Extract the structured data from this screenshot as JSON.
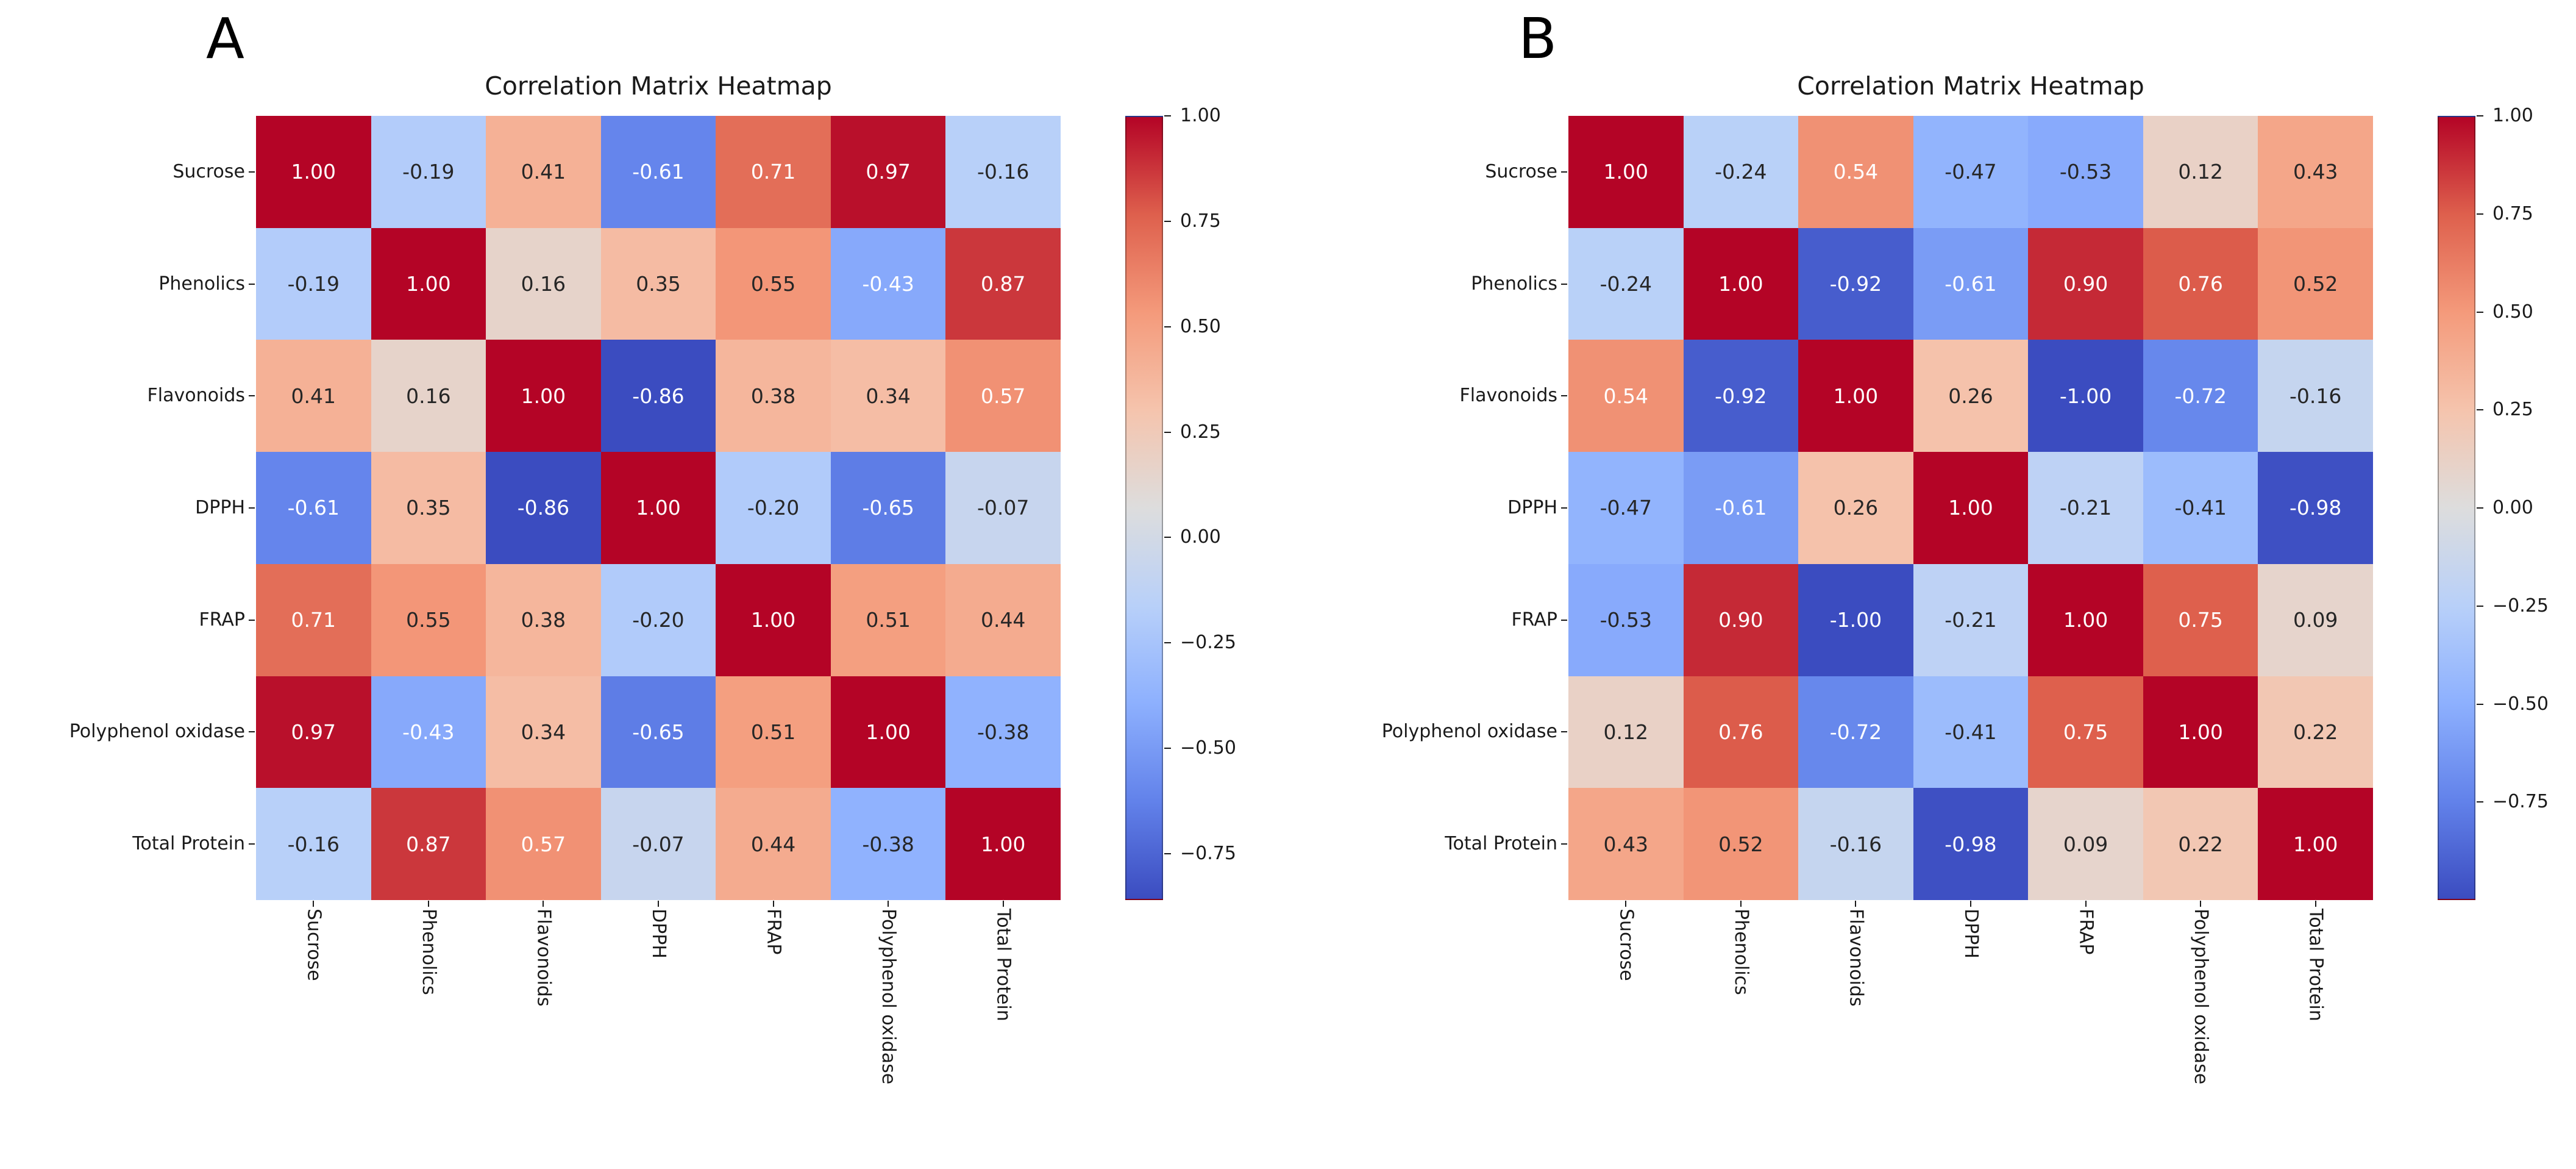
{
  "figure": {
    "background": "#FFFFFF",
    "colormap": {
      "name": "coolwarm",
      "stops": [
        {
          "t": 0.0,
          "color": "#3B4CC0"
        },
        {
          "t": 0.125,
          "color": "#6282EA"
        },
        {
          "t": 0.25,
          "color": "#8DB0FE"
        },
        {
          "t": 0.375,
          "color": "#B8D0F9"
        },
        {
          "t": 0.5,
          "color": "#DDDDDD"
        },
        {
          "t": 0.625,
          "color": "#F5C4AD"
        },
        {
          "t": 0.75,
          "color": "#F49A7B"
        },
        {
          "t": 0.875,
          "color": "#DE604D"
        },
        {
          "t": 1.0,
          "color": "#B40426"
        }
      ]
    },
    "annotation_colors": {
      "light": "#FFFFFF",
      "dark": "#262626"
    }
  },
  "chart_data": [
    {
      "type": "heatmap",
      "panel_label": "A",
      "title": "Correlation Matrix Heatmap",
      "categories": [
        "Sucrose",
        "Phenolics",
        "Flavonoids",
        "DPPH",
        "FRAP",
        "Polyphenol oxidase",
        "Total Protein"
      ],
      "matrix": [
        [
          1.0,
          -0.19,
          0.41,
          -0.61,
          0.71,
          0.97,
          -0.16
        ],
        [
          -0.19,
          1.0,
          0.16,
          0.35,
          0.55,
          -0.43,
          0.87
        ],
        [
          0.41,
          0.16,
          1.0,
          -0.86,
          0.38,
          0.34,
          0.57
        ],
        [
          -0.61,
          0.35,
          -0.86,
          1.0,
          -0.2,
          -0.65,
          -0.07
        ],
        [
          0.71,
          0.55,
          0.38,
          -0.2,
          1.0,
          0.51,
          0.44
        ],
        [
          0.97,
          -0.43,
          0.34,
          -0.65,
          0.51,
          1.0,
          -0.38
        ],
        [
          -0.16,
          0.87,
          0.57,
          -0.07,
          0.44,
          -0.38,
          1.0
        ]
      ],
      "vmin": -0.86,
      "vmax": 1.0,
      "colorbar_position": "right",
      "colorbar_ticks": [
        {
          "value": 1.0,
          "label": "1.00"
        },
        {
          "value": 0.75,
          "label": "0.75"
        },
        {
          "value": 0.5,
          "label": "0.50"
        },
        {
          "value": 0.25,
          "label": "0.25"
        },
        {
          "value": 0.0,
          "label": "0.00"
        },
        {
          "value": -0.25,
          "label": "−0.25"
        },
        {
          "value": -0.5,
          "label": "−0.50"
        },
        {
          "value": -0.75,
          "label": "−0.75"
        }
      ]
    },
    {
      "type": "heatmap",
      "panel_label": "B",
      "title": "Correlation Matrix Heatmap",
      "categories": [
        "Sucrose",
        "Phenolics",
        "Flavonoids",
        "DPPH",
        "FRAP",
        "Polyphenol oxidase",
        "Total Protein"
      ],
      "matrix": [
        [
          1.0,
          -0.24,
          0.54,
          -0.47,
          -0.53,
          0.12,
          0.43
        ],
        [
          -0.24,
          1.0,
          -0.92,
          -0.61,
          0.9,
          0.76,
          0.52
        ],
        [
          0.54,
          -0.92,
          1.0,
          0.26,
          -1.0,
          -0.72,
          -0.16
        ],
        [
          -0.47,
          -0.61,
          0.26,
          1.0,
          -0.21,
          -0.41,
          -0.98
        ],
        [
          -0.53,
          0.9,
          -1.0,
          -0.21,
          1.0,
          0.75,
          0.09
        ],
        [
          0.12,
          0.76,
          -0.72,
          -0.41,
          0.75,
          1.0,
          0.22
        ],
        [
          0.43,
          0.52,
          -0.16,
          -0.98,
          0.09,
          0.22,
          1.0
        ]
      ],
      "vmin": -1.0,
      "vmax": 1.0,
      "colorbar_position": "right",
      "colorbar_ticks": [
        {
          "value": 1.0,
          "label": "1.00"
        },
        {
          "value": 0.75,
          "label": "0.75"
        },
        {
          "value": 0.5,
          "label": "0.50"
        },
        {
          "value": 0.25,
          "label": "0.25"
        },
        {
          "value": 0.0,
          "label": "0.00"
        },
        {
          "value": -0.25,
          "label": "−0.25"
        },
        {
          "value": -0.5,
          "label": "−0.50"
        },
        {
          "value": -0.75,
          "label": "−0.75"
        }
      ]
    }
  ]
}
